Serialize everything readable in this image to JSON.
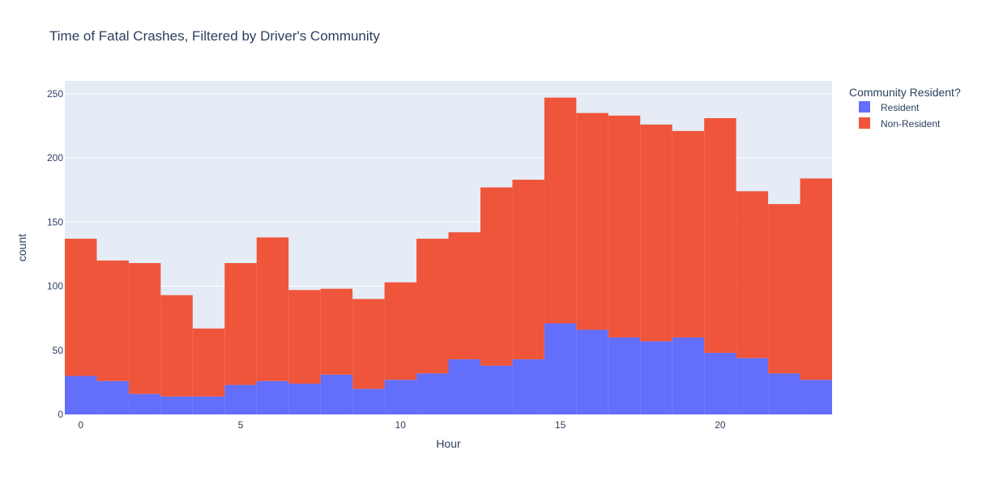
{
  "chart_data": {
    "type": "bar",
    "title": "Time of Fatal Crashes, Filtered by Driver's Community",
    "xlabel": "Hour",
    "ylabel": "count",
    "xlim": [
      -0.5,
      23.5
    ],
    "ylim": [
      0,
      260
    ],
    "x_ticks": [
      0,
      5,
      10,
      15,
      20
    ],
    "y_ticks": [
      0,
      50,
      100,
      150,
      200,
      250
    ],
    "stacked": true,
    "grid": true,
    "legend_position": "top-right",
    "legend_title": "Community Resident?",
    "categories": [
      0,
      1,
      2,
      3,
      4,
      5,
      6,
      7,
      8,
      9,
      10,
      11,
      12,
      13,
      14,
      15,
      16,
      17,
      18,
      19,
      20,
      21,
      22,
      23
    ],
    "series": [
      {
        "name": "Resident",
        "color": "#636efa",
        "values": [
          30,
          26,
          16,
          14,
          14,
          23,
          26,
          24,
          31,
          20,
          27,
          32,
          43,
          38,
          43,
          71,
          66,
          60,
          57,
          60,
          48,
          44,
          32,
          27
        ]
      },
      {
        "name": "Non-Resident",
        "color": "#ef553b",
        "values": [
          107,
          94,
          102,
          79,
          53,
          95,
          112,
          73,
          67,
          70,
          76,
          105,
          99,
          139,
          140,
          176,
          169,
          173,
          169,
          161,
          183,
          130,
          132,
          157
        ]
      }
    ],
    "plot_background": "#e5ecf6",
    "grid_color": "#ffffff"
  }
}
